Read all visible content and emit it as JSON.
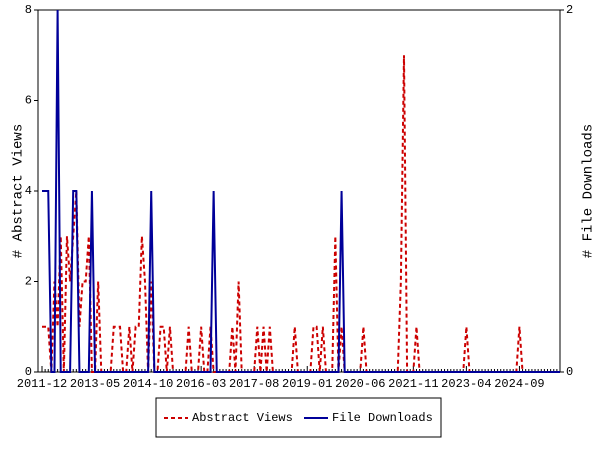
{
  "chart_data": {
    "type": "line",
    "categories": [
      "2011-12",
      null,
      null,
      null,
      null,
      null,
      null,
      null,
      null,
      null,
      null,
      null,
      null,
      null,
      null,
      null,
      null,
      "2013-05",
      null,
      null,
      null,
      null,
      null,
      null,
      null,
      null,
      null,
      null,
      null,
      null,
      null,
      null,
      null,
      null,
      "2014-10",
      null,
      null,
      null,
      null,
      null,
      null,
      null,
      null,
      null,
      null,
      null,
      null,
      null,
      null,
      null,
      null,
      "2016-03",
      null,
      null,
      null,
      null,
      null,
      null,
      null,
      null,
      null,
      null,
      null,
      null,
      null,
      null,
      null,
      null,
      "2017-08",
      null,
      null,
      null,
      null,
      null,
      null,
      null,
      null,
      null,
      null,
      null,
      null,
      null,
      null,
      null,
      null,
      "2019-01",
      null,
      null,
      null,
      null,
      null,
      null,
      null,
      null,
      null,
      null,
      null,
      null,
      null,
      null,
      null,
      null,
      "2020-06",
      null,
      null,
      null,
      null,
      null,
      null,
      null,
      null,
      null,
      null,
      null,
      null,
      null,
      null,
      null,
      null,
      "2021-11",
      null,
      null,
      null,
      null,
      null,
      null,
      null,
      null,
      null,
      null,
      null,
      null,
      null,
      null,
      null,
      null,
      "2023-04",
      null,
      null,
      null,
      null,
      null,
      null,
      null,
      null,
      null,
      null,
      null,
      null,
      null,
      null,
      null,
      null,
      "2024-09",
      null,
      null,
      null,
      null,
      null,
      null,
      null,
      null,
      null,
      null,
      null,
      null,
      null
    ],
    "series": [
      {
        "name": "Abstract Views",
        "color": "#cc0000",
        "style": "dashed",
        "axis": "y",
        "values": [
          1,
          1,
          1,
          0,
          2,
          1,
          3,
          0,
          3,
          2,
          3,
          4,
          1,
          2,
          2,
          3,
          0,
          0,
          2,
          0,
          0,
          0,
          0,
          1,
          1,
          1,
          0,
          0,
          1,
          0,
          1,
          1,
          3,
          2,
          0,
          2,
          0,
          0,
          1,
          1,
          0,
          1,
          0,
          0,
          0,
          0,
          0,
          1,
          0,
          0,
          0,
          1,
          0,
          0,
          1,
          0,
          0,
          0,
          0,
          0,
          0,
          1,
          0,
          2,
          0,
          0,
          0,
          0,
          0,
          1,
          0,
          1,
          0,
          1,
          0,
          0,
          0,
          0,
          0,
          0,
          0,
          1,
          0,
          0,
          0,
          0,
          0,
          1,
          1,
          0,
          1,
          0,
          0,
          0,
          3,
          0,
          1,
          0,
          0,
          0,
          0,
          0,
          0,
          1,
          0,
          0,
          0,
          0,
          0,
          0,
          0,
          0,
          0,
          0,
          0,
          2,
          7,
          0,
          0,
          0,
          1,
          0,
          0,
          0,
          0,
          0,
          0,
          0,
          0,
          0,
          0,
          0,
          0,
          0,
          0,
          0,
          1,
          0,
          0,
          0,
          0,
          0,
          0,
          0,
          0,
          0,
          0,
          0,
          0,
          0,
          0,
          0,
          0,
          1,
          0,
          0,
          0,
          0,
          0,
          0,
          0,
          0,
          0,
          0,
          0,
          0,
          0
        ]
      },
      {
        "name": "File Downloads",
        "color": "#000099",
        "style": "solid",
        "axis": "y2",
        "values": [
          1,
          1,
          1,
          0,
          0,
          2,
          0,
          0,
          0,
          0,
          1,
          1,
          0,
          0,
          0,
          0,
          1,
          0,
          0,
          0,
          0,
          0,
          0,
          0,
          0,
          0,
          0,
          0,
          0,
          0,
          0,
          0,
          0,
          0,
          0,
          1,
          0,
          0,
          0,
          0,
          0,
          0,
          0,
          0,
          0,
          0,
          0,
          0,
          0,
          0,
          0,
          0,
          0,
          0,
          0,
          1,
          0,
          0,
          0,
          0,
          0,
          0,
          0,
          0,
          0,
          0,
          0,
          0,
          0,
          0,
          0,
          0,
          0,
          0,
          0,
          0,
          0,
          0,
          0,
          0,
          0,
          0,
          0,
          0,
          0,
          0,
          0,
          0,
          0,
          0,
          0,
          0,
          0,
          0,
          0,
          0,
          1,
          0,
          0,
          0,
          0,
          0,
          0,
          0,
          0,
          0,
          0,
          0,
          0,
          0,
          0,
          0,
          0,
          0,
          0,
          0,
          0,
          0,
          0,
          0,
          0,
          0,
          0,
          0,
          0,
          0,
          0,
          0,
          0,
          0,
          0,
          0,
          0,
          0,
          0,
          0,
          0,
          0,
          0,
          0,
          0,
          0,
          0,
          0,
          0,
          0,
          0,
          0,
          0,
          0,
          0,
          0,
          0,
          0,
          0,
          0,
          0,
          0,
          0,
          0,
          0,
          0,
          0,
          0,
          0,
          0,
          0
        ]
      }
    ],
    "ylabel": "# Abstract Views",
    "y2label": "# File Downloads",
    "ylim": [
      0,
      8
    ],
    "yticks": [
      0,
      2,
      4,
      6,
      8
    ],
    "y2lim": [
      0,
      2
    ],
    "y2ticks": [
      0,
      2
    ],
    "legend": "bottom",
    "grid": false
  }
}
